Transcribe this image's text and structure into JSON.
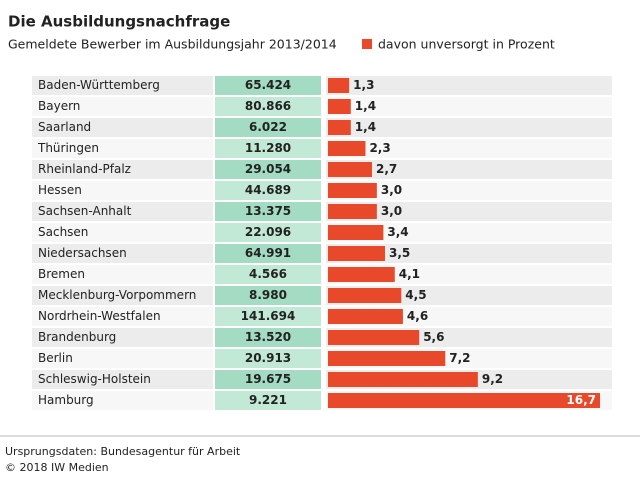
{
  "chart_data": {
    "type": "bar",
    "title": "Die Ausbildungsnachfrage",
    "categories": [
      "Baden-Württemberg",
      "Bayern",
      "Saarland",
      "Thüringen",
      "Rheinland-Pfalz",
      "Hessen",
      "Sachsen-Anhalt",
      "Sachsen",
      "Niedersachsen",
      "Bremen",
      "Mecklenburg-Vorpommern",
      "Nordrhein-Westfalen",
      "Brandenburg",
      "Berlin",
      "Schleswig-Holstein",
      "Hamburg"
    ],
    "series": [
      {
        "name": "Gemeldete Bewerber im Ausbildungsjahr 2013/2014",
        "color": "#a3dbc3",
        "values": [
          65424,
          80866,
          6022,
          11280,
          29054,
          44689,
          13375,
          22096,
          64991,
          4566,
          8980,
          141694,
          13520,
          20913,
          19675,
          9221
        ],
        "value_labels": [
          "65.424",
          "80.866",
          "6.022",
          "11.280",
          "29.054",
          "44.689",
          "13.375",
          "22.096",
          "64.991",
          "4.566",
          "8.980",
          "141.694",
          "13.520",
          "20.913",
          "19.675",
          "9.221"
        ]
      },
      {
        "name": "davon unversorgt in Prozent",
        "color": "#e9492b",
        "values": [
          1.3,
          1.4,
          1.4,
          2.3,
          2.7,
          3.0,
          3.0,
          3.4,
          3.5,
          4.1,
          4.5,
          4.6,
          5.6,
          7.2,
          9.2,
          16.7
        ],
        "value_labels": [
          "1,3",
          "1,4",
          "1,4",
          "2,3",
          "2,7",
          "3,0",
          "3,0",
          "3,4",
          "3,5",
          "4,1",
          "4,5",
          "4,6",
          "5,6",
          "7,2",
          "9,2",
          "16,7"
        ]
      }
    ],
    "notes": [
      "Ursprungsdaten: Bundesagentur für Arbeit",
      "© 2018 IW Medien"
    ]
  }
}
